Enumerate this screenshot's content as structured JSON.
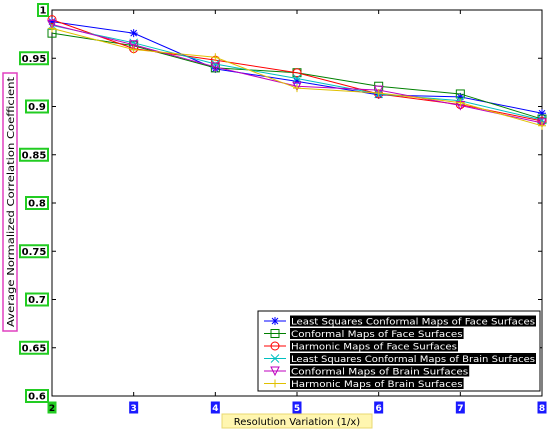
{
  "chart_data": {
    "type": "line",
    "title": "",
    "xlabel": "Resolution Variation (1/x)",
    "ylabel": "Average Normalized Correlation Coefficient",
    "x": [
      "2",
      "3",
      "4",
      "5",
      "6",
      "7",
      "8"
    ],
    "ylim": [
      0.6,
      1.0
    ],
    "yticks": [
      "0.6",
      "0.65",
      "0.7",
      "0.75",
      "0.8",
      "0.85",
      "0.9",
      "0.95",
      "1"
    ],
    "grid": false,
    "legend_position": "bottom-right",
    "series": [
      {
        "name": "Least Squares Conformal Maps of Face Surfaces",
        "color": "#0000ff",
        "marker": "star",
        "values": [
          0.988,
          0.976,
          0.939,
          0.926,
          0.912,
          0.91,
          0.893
        ]
      },
      {
        "name": "Conformal Maps of Face Surfaces",
        "color": "#008000",
        "marker": "square",
        "values": [
          0.976,
          0.963,
          0.94,
          0.935,
          0.921,
          0.913,
          0.887
        ]
      },
      {
        "name": "Harmonic Maps of Face Surfaces",
        "color": "#ff0000",
        "marker": "circle",
        "values": [
          0.99,
          0.96,
          0.948,
          0.935,
          0.913,
          0.902,
          0.885
        ]
      },
      {
        "name": "Least Squares Conformal Maps of Brain Surfaces",
        "color": "#00bfbf",
        "marker": "x",
        "values": [
          0.984,
          0.966,
          0.944,
          0.929,
          0.913,
          0.906,
          0.886
        ]
      },
      {
        "name": "Conformal Maps of Brain Surfaces",
        "color": "#bf00bf",
        "marker": "triangle-down",
        "values": [
          0.985,
          0.964,
          0.941,
          0.921,
          0.917,
          0.901,
          0.883
        ]
      },
      {
        "name": "Harmonic Maps of Brain Surfaces",
        "color": "#e0c000",
        "marker": "plus",
        "values": [
          0.981,
          0.959,
          0.951,
          0.919,
          0.914,
          0.904,
          0.88
        ]
      }
    ]
  }
}
